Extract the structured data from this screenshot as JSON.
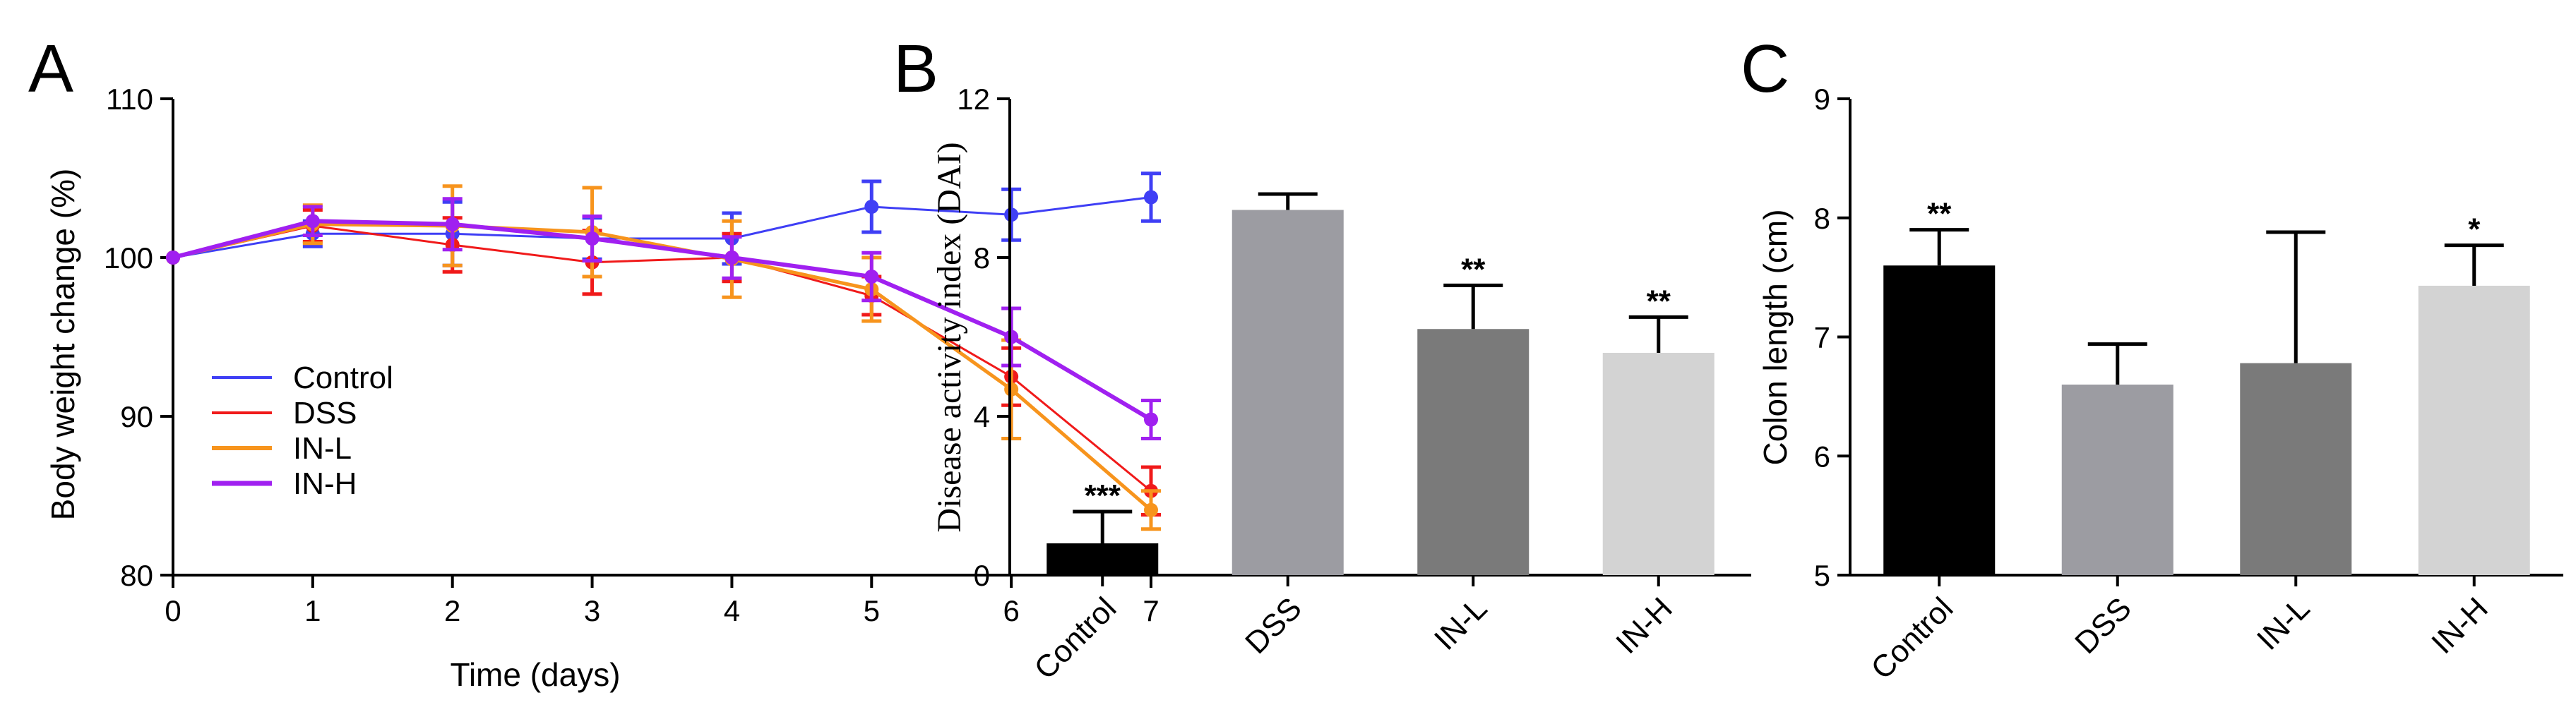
{
  "panels": {
    "A": {
      "letter": "A"
    },
    "B": {
      "letter": "B"
    },
    "C": {
      "letter": "C"
    }
  },
  "colors": {
    "Control": "#3f3ff5",
    "DSS": "#f01a1a",
    "IN-L": "#f7941d",
    "IN-H": "#a020f0",
    "significance": "#1f2bd6",
    "bar_Control": "#000000",
    "bar_DSS": "#9c9ca2",
    "bar_IN-L": "#7a7a7a",
    "bar_IN-H": "#d3d3d3"
  },
  "chart_data": [
    {
      "panel": "A",
      "type": "line",
      "title": "",
      "xlabel": "Time (days)",
      "ylabel": "Body weight change (%)",
      "xlim": [
        0,
        7
      ],
      "ylim": [
        80,
        110
      ],
      "x_ticks": [
        0,
        1,
        2,
        3,
        4,
        5,
        6,
        7
      ],
      "y_ticks": [
        80,
        90,
        100,
        110
      ],
      "legend_position": "lower-left",
      "grid": false,
      "x": [
        0,
        1,
        2,
        3,
        4,
        5,
        6,
        7
      ],
      "series": [
        {
          "name": "Control",
          "color": "#3f3ff5",
          "values": [
            100,
            101.5,
            101.5,
            101.2,
            101.2,
            103.2,
            102.7,
            103.8
          ],
          "errors": [
            0,
            0.8,
            2.0,
            1.3,
            1.6,
            1.6,
            1.6,
            1.5
          ]
        },
        {
          "name": "DSS",
          "color": "#f01a1a",
          "values": [
            100,
            102.0,
            100.8,
            99.7,
            100.0,
            97.6,
            92.5,
            85.3
          ],
          "errors": [
            0,
            1.0,
            1.7,
            2.0,
            1.5,
            1.2,
            1.8,
            1.5
          ]
        },
        {
          "name": "IN-L",
          "color": "#f7941d",
          "values": [
            100,
            102.1,
            102.0,
            101.6,
            99.9,
            98.0,
            91.7,
            84.1
          ],
          "errors": [
            0,
            1.2,
            2.5,
            2.8,
            2.4,
            2.0,
            3.1,
            1.2
          ]
        },
        {
          "name": "IN-H",
          "color": "#a020f0",
          "values": [
            100,
            102.3,
            102.1,
            101.2,
            100.0,
            98.8,
            95.0,
            89.8
          ],
          "errors": [
            0,
            0.9,
            1.6,
            1.4,
            1.3,
            1.5,
            1.8,
            1.2
          ]
        }
      ]
    },
    {
      "panel": "B",
      "type": "bar",
      "title": "",
      "xlabel": "",
      "ylabel": "Disease activity index (DAI)",
      "ylim": [
        0,
        12
      ],
      "y_ticks": [
        0,
        4,
        8,
        12
      ],
      "grid": false,
      "categories": [
        "Control",
        "DSS",
        "IN-L",
        "IN-H"
      ],
      "values": [
        0.8,
        9.2,
        6.2,
        5.6
      ],
      "errors": [
        0.8,
        0.4,
        1.1,
        0.9
      ],
      "significance": [
        "***",
        "",
        "**",
        "**"
      ]
    },
    {
      "panel": "C",
      "type": "bar",
      "title": "",
      "xlabel": "",
      "ylabel": "Colon length (cm)",
      "ylim": [
        5,
        9
      ],
      "y_ticks": [
        5,
        6,
        7,
        8,
        9
      ],
      "grid": false,
      "categories": [
        "Control",
        "DSS",
        "IN-L",
        "IN-H"
      ],
      "values": [
        7.6,
        6.6,
        6.78,
        7.43
      ],
      "errors": [
        0.3,
        0.34,
        1.1,
        0.34
      ],
      "significance": [
        "**",
        "",
        "",
        "*"
      ]
    }
  ]
}
